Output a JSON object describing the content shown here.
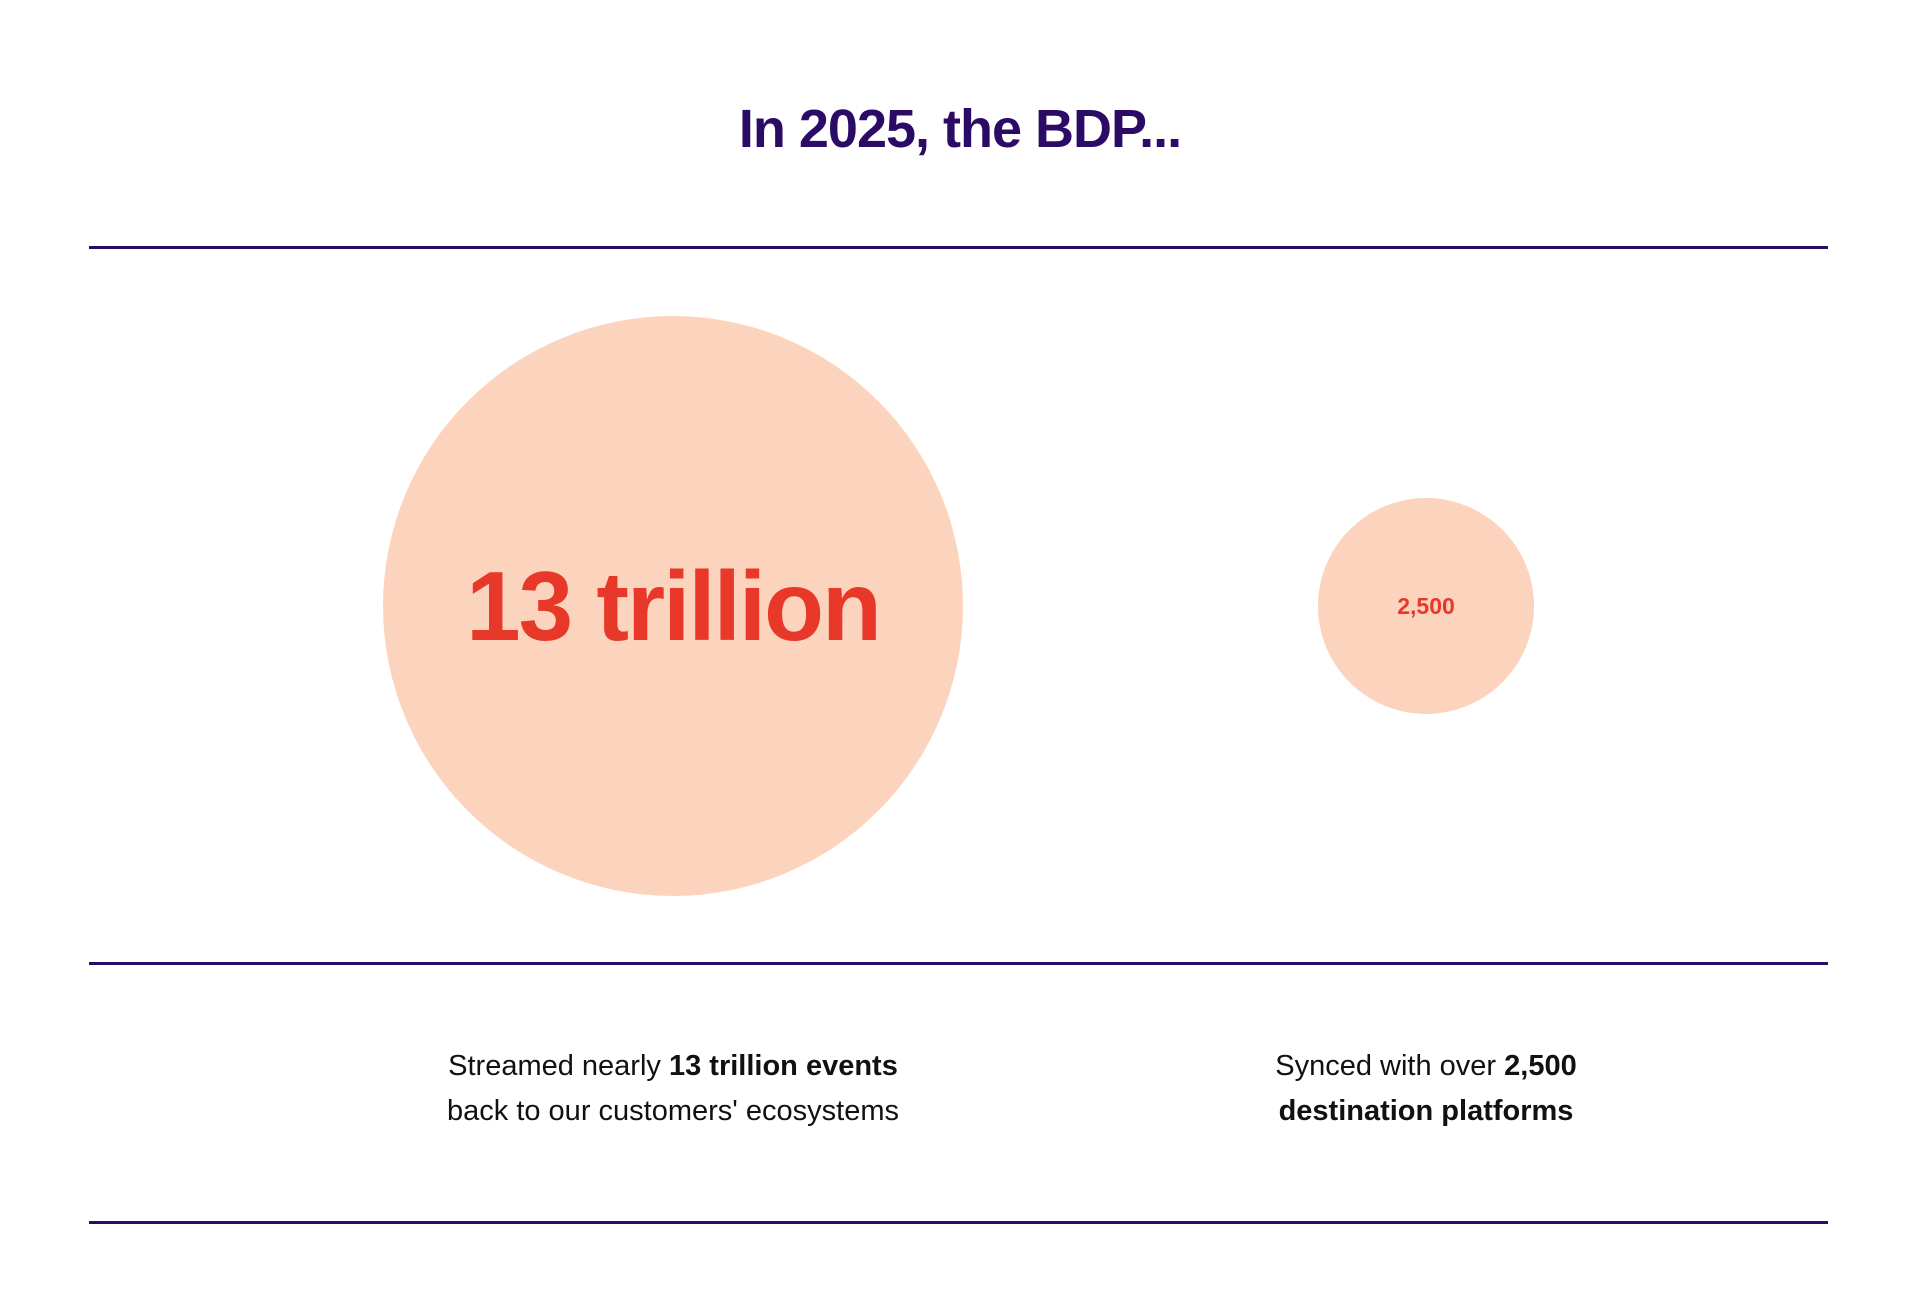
{
  "header": {
    "title": "In 2025, the BDP..."
  },
  "stats": [
    {
      "circle_label": "13 trillion",
      "caption": {
        "line1_regular": "Streamed nearly",
        "line1_bold": "13 trillion events",
        "line2_regular": "back to our customers' ecosystems"
      }
    },
    {
      "circle_label": "2,500",
      "caption": {
        "line1_regular": "Synced with over",
        "line1_bold": "2,500",
        "line2_bold": "destination platforms"
      }
    }
  ]
}
